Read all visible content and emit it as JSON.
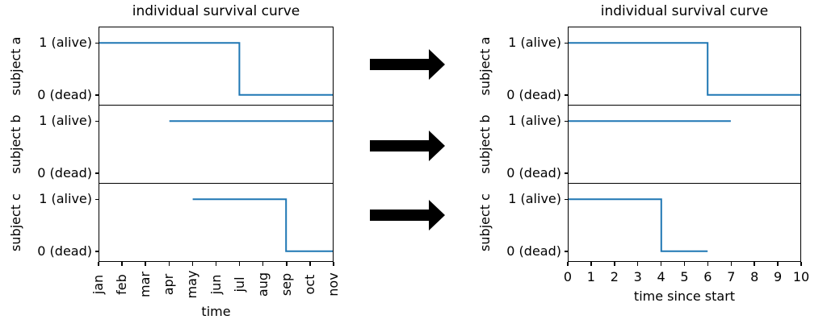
{
  "colors": {
    "line": "#1f77b4",
    "axis": "#000000",
    "text": "#000000",
    "arrow": "#000000",
    "background": "#ffffff"
  },
  "arrows": {
    "count": 3,
    "direction": "right"
  },
  "chart_data": [
    {
      "type": "line",
      "subtype": "step-survival",
      "title": "individual survival curve",
      "xlabel": "time",
      "x_tick_labels": [
        "jan",
        "feb",
        "mar",
        "apr",
        "may",
        "jun",
        "jul",
        "aug",
        "sep",
        "oct",
        "nov"
      ],
      "x_tick_rotation_deg": 90,
      "x_range": [
        0,
        10
      ],
      "ylim": [
        -0.19,
        1.3
      ],
      "grid": false,
      "panels": [
        {
          "ylabel": "subject a",
          "ytick_labels": [
            "1 (alive)",
            "0 (dead)"
          ],
          "ytick_values": [
            1,
            0
          ],
          "points": [
            [
              0,
              1
            ],
            [
              6,
              1
            ],
            [
              6,
              0
            ],
            [
              10,
              0
            ]
          ]
        },
        {
          "ylabel": "subject b",
          "ytick_labels": [
            "1 (alive)",
            "0 (dead)"
          ],
          "ytick_values": [
            1,
            0
          ],
          "points": [
            [
              3,
              1
            ],
            [
              10,
              1
            ]
          ]
        },
        {
          "ylabel": "subject c",
          "ytick_labels": [
            "1 (alive)",
            "0 (dead)"
          ],
          "ytick_values": [
            1,
            0
          ],
          "points": [
            [
              4,
              1
            ],
            [
              8,
              1
            ],
            [
              8,
              0
            ],
            [
              10,
              0
            ]
          ]
        }
      ]
    },
    {
      "type": "line",
      "subtype": "step-survival",
      "title": "individual survival curve",
      "xlabel": "time since start",
      "x_tick_labels": [
        "0",
        "1",
        "2",
        "3",
        "4",
        "5",
        "6",
        "7",
        "8",
        "9",
        "10"
      ],
      "x_tick_rotation_deg": 0,
      "x_range": [
        0,
        10
      ],
      "ylim": [
        -0.19,
        1.3
      ],
      "grid": false,
      "panels": [
        {
          "ylabel": "subject a",
          "ytick_labels": [
            "1 (alive)",
            "0 (dead)"
          ],
          "ytick_values": [
            1,
            0
          ],
          "points": [
            [
              0,
              1
            ],
            [
              6,
              1
            ],
            [
              6,
              0
            ],
            [
              10,
              0
            ]
          ]
        },
        {
          "ylabel": "subject b",
          "ytick_labels": [
            "1 (alive)",
            "0 (dead)"
          ],
          "ytick_values": [
            1,
            0
          ],
          "points": [
            [
              0,
              1
            ],
            [
              7,
              1
            ]
          ]
        },
        {
          "ylabel": "subject c",
          "ytick_labels": [
            "1 (alive)",
            "0 (dead)"
          ],
          "ytick_values": [
            1,
            0
          ],
          "points": [
            [
              0,
              1
            ],
            [
              4,
              1
            ],
            [
              4,
              0
            ],
            [
              6,
              0
            ]
          ]
        }
      ]
    }
  ]
}
